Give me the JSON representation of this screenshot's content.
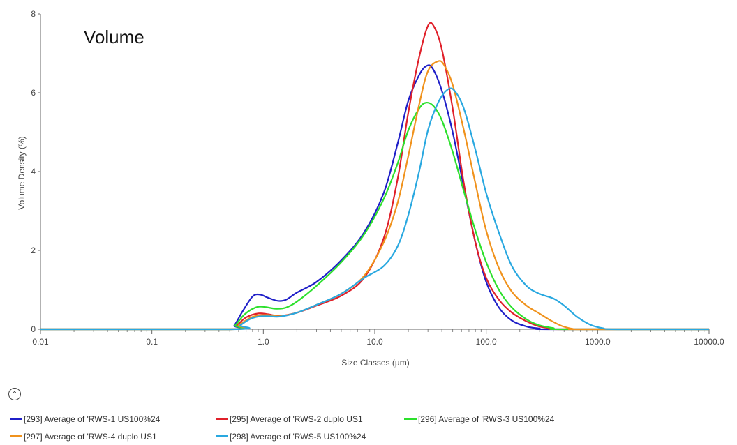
{
  "chart_data": {
    "type": "line",
    "title": "Volume",
    "xlabel": "Size Classes (µm)",
    "ylabel": "Volume Density (%)",
    "x_scale": "log",
    "xlim": [
      0.01,
      10000
    ],
    "ylim": [
      0,
      8
    ],
    "x_ticks": [
      {
        "value": 0.01,
        "label": "0.01"
      },
      {
        "value": 0.1,
        "label": "0.1"
      },
      {
        "value": 1,
        "label": "1.0"
      },
      {
        "value": 10,
        "label": "10.0"
      },
      {
        "value": 100,
        "label": "100.0"
      },
      {
        "value": 1000,
        "label": "1000.0"
      },
      {
        "value": 10000,
        "label": "10000.0"
      }
    ],
    "y_ticks": [
      {
        "value": 0,
        "label": "0"
      },
      {
        "value": 2,
        "label": "2"
      },
      {
        "value": 4,
        "label": "4"
      },
      {
        "value": 6,
        "label": "6"
      },
      {
        "value": 8,
        "label": "8"
      }
    ],
    "legend_position": "bottom",
    "series": [
      {
        "name": "[293] Average of 'RWS-1 US100%24",
        "color": "#1f1fc8",
        "points": [
          [
            0.01,
            0
          ],
          [
            0.49,
            0
          ],
          [
            0.55,
            0.1
          ],
          [
            0.65,
            0.45
          ],
          [
            0.8,
            0.83
          ],
          [
            0.93,
            0.88
          ],
          [
            1.1,
            0.8
          ],
          [
            1.35,
            0.72
          ],
          [
            1.6,
            0.75
          ],
          [
            2,
            0.93
          ],
          [
            3,
            1.2
          ],
          [
            5,
            1.75
          ],
          [
            8,
            2.45
          ],
          [
            12,
            3.45
          ],
          [
            16,
            4.7
          ],
          [
            20,
            5.8
          ],
          [
            25,
            6.45
          ],
          [
            29,
            6.68
          ],
          [
            33,
            6.62
          ],
          [
            40,
            6.05
          ],
          [
            50,
            5
          ],
          [
            63,
            3.6
          ],
          [
            80,
            2.2
          ],
          [
            100,
            1.2
          ],
          [
            130,
            0.55
          ],
          [
            170,
            0.22
          ],
          [
            230,
            0.07
          ],
          [
            300,
            0.02
          ],
          [
            380,
            0
          ],
          [
            10000,
            0
          ]
        ]
      },
      {
        "name": "[295] Average of 'RWS-2 duplo US1",
        "color": "#e0202a",
        "points": [
          [
            0.01,
            0
          ],
          [
            0.51,
            0
          ],
          [
            0.58,
            0.1
          ],
          [
            0.7,
            0.3
          ],
          [
            0.9,
            0.4
          ],
          [
            1.1,
            0.38
          ],
          [
            1.4,
            0.34
          ],
          [
            2,
            0.42
          ],
          [
            3,
            0.6
          ],
          [
            5,
            0.85
          ],
          [
            8,
            1.3
          ],
          [
            12,
            2.3
          ],
          [
            16,
            3.8
          ],
          [
            20,
            5.5
          ],
          [
            25,
            6.9
          ],
          [
            30,
            7.7
          ],
          [
            34,
            7.68
          ],
          [
            40,
            7.1
          ],
          [
            50,
            5.6
          ],
          [
            63,
            3.7
          ],
          [
            80,
            2.2
          ],
          [
            100,
            1.3
          ],
          [
            130,
            0.75
          ],
          [
            170,
            0.42
          ],
          [
            230,
            0.2
          ],
          [
            300,
            0.07
          ],
          [
            400,
            0.02
          ],
          [
            480,
            0
          ],
          [
            10000,
            0
          ]
        ]
      },
      {
        "name": "[296] Average of 'RWS-3  US100%24",
        "color": "#2ce02c",
        "points": [
          [
            0.01,
            0
          ],
          [
            0.5,
            0
          ],
          [
            0.56,
            0.1
          ],
          [
            0.68,
            0.38
          ],
          [
            0.85,
            0.55
          ],
          [
            1,
            0.57
          ],
          [
            1.3,
            0.52
          ],
          [
            1.6,
            0.55
          ],
          [
            2,
            0.7
          ],
          [
            3,
            1.1
          ],
          [
            5,
            1.7
          ],
          [
            8,
            2.4
          ],
          [
            12,
            3.3
          ],
          [
            16,
            4.2
          ],
          [
            20,
            5.05
          ],
          [
            25,
            5.6
          ],
          [
            29,
            5.75
          ],
          [
            34,
            5.65
          ],
          [
            40,
            5.3
          ],
          [
            50,
            4.5
          ],
          [
            63,
            3.5
          ],
          [
            80,
            2.5
          ],
          [
            100,
            1.7
          ],
          [
            130,
            1
          ],
          [
            170,
            0.55
          ],
          [
            230,
            0.25
          ],
          [
            300,
            0.1
          ],
          [
            400,
            0.03
          ],
          [
            500,
            0
          ],
          [
            10000,
            0
          ]
        ]
      },
      {
        "name": "[297] Average of 'RWS-4 duplo US1",
        "color": "#f0921c",
        "points": [
          [
            0.01,
            0
          ],
          [
            0.52,
            0
          ],
          [
            0.6,
            0.1
          ],
          [
            0.75,
            0.28
          ],
          [
            0.9,
            0.35
          ],
          [
            1.1,
            0.36
          ],
          [
            1.4,
            0.33
          ],
          [
            2,
            0.42
          ],
          [
            3,
            0.62
          ],
          [
            5,
            0.9
          ],
          [
            8,
            1.35
          ],
          [
            12,
            2.2
          ],
          [
            16,
            3.2
          ],
          [
            20,
            4.4
          ],
          [
            25,
            5.7
          ],
          [
            30,
            6.55
          ],
          [
            37,
            6.8
          ],
          [
            42,
            6.7
          ],
          [
            50,
            6.2
          ],
          [
            63,
            5.05
          ],
          [
            80,
            3.7
          ],
          [
            100,
            2.5
          ],
          [
            130,
            1.55
          ],
          [
            170,
            0.95
          ],
          [
            230,
            0.6
          ],
          [
            300,
            0.4
          ],
          [
            380,
            0.22
          ],
          [
            480,
            0.08
          ],
          [
            600,
            0.01
          ],
          [
            700,
            0
          ],
          [
            10000,
            0
          ]
        ]
      },
      {
        "name": "[298] Average of 'RWS-5 US100%24",
        "color": "#29a8e0",
        "points": [
          [
            0.01,
            0
          ],
          [
            0.54,
            0
          ],
          [
            0.62,
            0.1
          ],
          [
            0.75,
            0.25
          ],
          [
            0.9,
            0.32
          ],
          [
            1.1,
            0.33
          ],
          [
            1.4,
            0.32
          ],
          [
            2,
            0.42
          ],
          [
            3,
            0.62
          ],
          [
            5,
            0.9
          ],
          [
            8,
            1.3
          ],
          [
            12,
            1.6
          ],
          [
            16,
            2.1
          ],
          [
            20,
            2.9
          ],
          [
            25,
            4
          ],
          [
            30,
            5.05
          ],
          [
            37,
            5.75
          ],
          [
            45,
            6.08
          ],
          [
            52,
            6.05
          ],
          [
            63,
            5.6
          ],
          [
            80,
            4.55
          ],
          [
            100,
            3.45
          ],
          [
            130,
            2.45
          ],
          [
            170,
            1.6
          ],
          [
            230,
            1.1
          ],
          [
            300,
            0.9
          ],
          [
            400,
            0.78
          ],
          [
            500,
            0.6
          ],
          [
            650,
            0.32
          ],
          [
            850,
            0.12
          ],
          [
            1100,
            0.03
          ],
          [
            1500,
            0
          ],
          [
            10000,
            0
          ]
        ]
      }
    ]
  },
  "controls": {
    "collapse_glyph": "⌃"
  }
}
